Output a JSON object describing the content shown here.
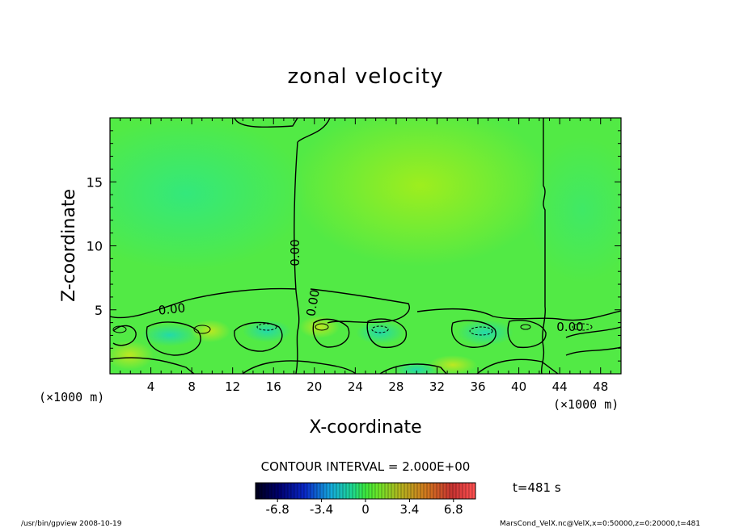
{
  "chart_data": {
    "type": "heatmap",
    "title": "zonal velocity",
    "xlabel": "X-coordinate",
    "ylabel": "Z-coordinate",
    "x_unit_left": "(×1000 m)",
    "x_unit_right": "(×1000 m)",
    "xlim": [
      0,
      50
    ],
    "ylim": [
      0,
      20
    ],
    "x_ticks": [
      "4",
      "8",
      "12",
      "16",
      "20",
      "24",
      "28",
      "32",
      "36",
      "40",
      "44",
      "48"
    ],
    "x_tick_values": [
      4,
      8,
      12,
      16,
      20,
      24,
      28,
      32,
      36,
      40,
      44,
      48
    ],
    "y_ticks": [
      "5",
      "10",
      "15"
    ],
    "y_tick_values": [
      5,
      10,
      15
    ],
    "contour_interval_text": "CONTOUR INTERVAL = 2.000E+00",
    "contour_labels": [
      "0.00",
      "0.00",
      "0.00",
      "0.00",
      "0.00"
    ],
    "colorbar": {
      "min": -8.5,
      "max": 8.5,
      "ticks": [
        "-6.8",
        "-3.4",
        "0",
        "3.4",
        "6.8"
      ],
      "tick_values": [
        -6.8,
        -3.4,
        0,
        3.4,
        6.8
      ]
    },
    "time_label": "t=481 s",
    "grid": false
  },
  "footer": {
    "left": "/usr/bin/gpview  2008-10-19",
    "right": "MarsCond_VelX.nc@VelX,x=0:50000,z=0:20000,t=481"
  }
}
